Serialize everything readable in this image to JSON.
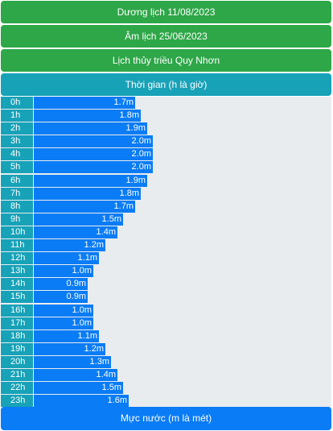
{
  "header": {
    "solar_date": "Dương lịch 11/08/2023",
    "lunar_date": "Âm lịch 25/06/2023",
    "title": "Lịch thủy triều Quy Nhơn",
    "time_header": "Thời gian (h là giờ)"
  },
  "footer": {
    "level_header": "Mực nước (m là mét)"
  },
  "colors": {
    "green": "#2ea748",
    "teal": "#17a2b8",
    "blue": "#0a7cf5",
    "track": "#e9ecef"
  },
  "scale_max": 5.0,
  "rows": [
    {
      "hour": "0h",
      "level": 1.7,
      "label": "1.7m"
    },
    {
      "hour": "1h",
      "level": 1.8,
      "label": "1.8m"
    },
    {
      "hour": "2h",
      "level": 1.9,
      "label": "1.9m"
    },
    {
      "hour": "3h",
      "level": 2.0,
      "label": "2.0m"
    },
    {
      "hour": "4h",
      "level": 2.0,
      "label": "2.0m"
    },
    {
      "hour": "5h",
      "level": 2.0,
      "label": "2.0m"
    },
    {
      "hour": "6h",
      "level": 1.9,
      "label": "1.9m"
    },
    {
      "hour": "7h",
      "level": 1.8,
      "label": "1.8m"
    },
    {
      "hour": "8h",
      "level": 1.7,
      "label": "1.7m"
    },
    {
      "hour": "9h",
      "level": 1.5,
      "label": "1.5m"
    },
    {
      "hour": "10h",
      "level": 1.4,
      "label": "1.4m"
    },
    {
      "hour": "11h",
      "level": 1.2,
      "label": "1.2m"
    },
    {
      "hour": "12h",
      "level": 1.1,
      "label": "1.1m"
    },
    {
      "hour": "13h",
      "level": 1.0,
      "label": "1.0m"
    },
    {
      "hour": "14h",
      "level": 0.9,
      "label": "0.9m"
    },
    {
      "hour": "15h",
      "level": 0.9,
      "label": "0.9m"
    },
    {
      "hour": "16h",
      "level": 1.0,
      "label": "1.0m"
    },
    {
      "hour": "17h",
      "level": 1.0,
      "label": "1.0m"
    },
    {
      "hour": "18h",
      "level": 1.1,
      "label": "1.1m"
    },
    {
      "hour": "19h",
      "level": 1.2,
      "label": "1.2m"
    },
    {
      "hour": "20h",
      "level": 1.3,
      "label": "1.3m"
    },
    {
      "hour": "21h",
      "level": 1.4,
      "label": "1.4m"
    },
    {
      "hour": "22h",
      "level": 1.5,
      "label": "1.5m"
    },
    {
      "hour": "23h",
      "level": 1.6,
      "label": "1.6m"
    }
  ]
}
